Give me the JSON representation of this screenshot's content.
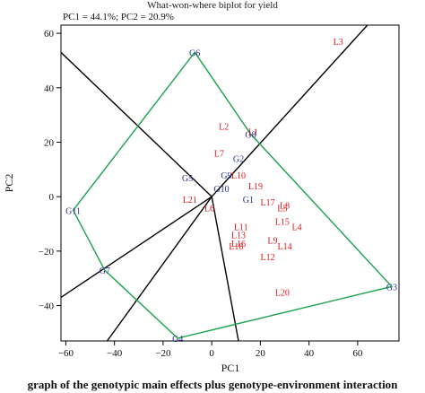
{
  "chart_data": {
    "type": "scatter",
    "title": "What-won-where biplot for yield",
    "subtitle": "PC1 = 44.1%; PC2 = 20.9%",
    "xlabel": "PC1",
    "ylabel": "PC2",
    "xlim": [
      -62,
      77
    ],
    "ylim": [
      -53,
      63
    ],
    "xticks": [
      -60,
      -40,
      -20,
      0,
      20,
      40,
      60
    ],
    "yticks": [
      -40,
      -20,
      0,
      20,
      40,
      60
    ],
    "xtick_labels": [
      "−60",
      "−40",
      "−20",
      "0",
      "20",
      "40",
      "60"
    ],
    "ytick_labels": [
      "−40",
      "−20",
      "0",
      "20",
      "40",
      "60"
    ],
    "grid": false,
    "colors": {
      "genotype": "#2b2f8f",
      "environment": "#d7191c",
      "polygon": "#1aa34a",
      "rays": "#000000"
    },
    "genotypes": [
      {
        "name": "G1",
        "x": 15,
        "y": -1
      },
      {
        "name": "G2",
        "x": 11,
        "y": 14
      },
      {
        "name": "G3",
        "x": 74,
        "y": -33
      },
      {
        "name": "G4",
        "x": -14,
        "y": -52
      },
      {
        "name": "G5",
        "x": -10,
        "y": 7
      },
      {
        "name": "G6",
        "x": -7,
        "y": 53
      },
      {
        "name": "G7",
        "x": -44,
        "y": -27
      },
      {
        "name": "G8",
        "x": 16,
        "y": 23
      },
      {
        "name": "G9",
        "x": 6,
        "y": 8
      },
      {
        "name": "G10",
        "x": 4,
        "y": 3
      },
      {
        "name": "G11",
        "x": -57,
        "y": -5
      }
    ],
    "environments": [
      {
        "name": "L1",
        "x": 17,
        "y": 24
      },
      {
        "name": "L2",
        "x": 5,
        "y": 26
      },
      {
        "name": "L3",
        "x": 52,
        "y": 57
      },
      {
        "name": "L4",
        "x": 35,
        "y": -11
      },
      {
        "name": "L5",
        "x": 29,
        "y": -4
      },
      {
        "name": "L6",
        "x": -1,
        "y": -4
      },
      {
        "name": "L7",
        "x": 3,
        "y": 16
      },
      {
        "name": "L8",
        "x": 30,
        "y": -3
      },
      {
        "name": "L9",
        "x": 25,
        "y": -16
      },
      {
        "name": "L10",
        "x": 11,
        "y": 8
      },
      {
        "name": "L11",
        "x": 12,
        "y": -11
      },
      {
        "name": "L12",
        "x": 23,
        "y": -22
      },
      {
        "name": "L13",
        "x": 11,
        "y": -14
      },
      {
        "name": "L14",
        "x": 30,
        "y": -18
      },
      {
        "name": "L15",
        "x": 29,
        "y": -9
      },
      {
        "name": "L16",
        "x": 11,
        "y": -17
      },
      {
        "name": "L17",
        "x": 23,
        "y": -2
      },
      {
        "name": "L18",
        "x": 10,
        "y": -18
      },
      {
        "name": "L19",
        "x": 18,
        "y": 4
      },
      {
        "name": "L20",
        "x": 29,
        "y": -35
      },
      {
        "name": "L21",
        "x": -9,
        "y": -1
      }
    ],
    "polygon": [
      "G6",
      "G8",
      "G3",
      "G4",
      "G7",
      "G11"
    ],
    "rays": [
      {
        "x": -62,
        "y": 53
      },
      {
        "x": 64,
        "y": 63
      },
      {
        "x": -62,
        "y": -37
      },
      {
        "x": -43,
        "y": -53
      },
      {
        "x": 11,
        "y": -53
      }
    ]
  },
  "caption": "graph of the genotypic main effects plus genotype-environment interaction"
}
